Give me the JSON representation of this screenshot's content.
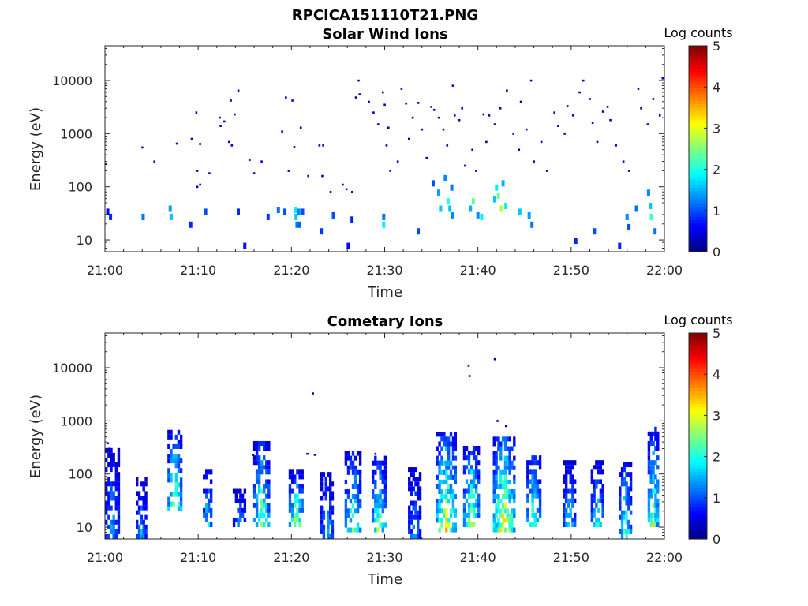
{
  "figure": {
    "filename_title": "RPCICA151110T21.PNG"
  },
  "chart_data": [
    {
      "type": "heatmap",
      "title": "Solar Wind Ions",
      "xlabel": "Time",
      "ylabel": "Energy (eV)",
      "xlim": [
        "21:00",
        "22:00"
      ],
      "ylim": [
        6,
        45000
      ],
      "yscale": "log",
      "xticks": [
        "21:00",
        "21:10",
        "21:20",
        "21:30",
        "21:40",
        "21:50",
        "22:00"
      ],
      "yticks": [
        "10",
        "100",
        "1000",
        "10000"
      ],
      "colorbar": {
        "label": "Log counts",
        "range": [
          0,
          5
        ],
        "ticks": [
          "0",
          "1",
          "2",
          "3",
          "4",
          "5"
        ],
        "colormap": "jet"
      },
      "pixels": [
        {
          "t": 0.3,
          "e": 35,
          "v": 0.5
        },
        {
          "t": 0.6,
          "e": 28,
          "v": 0.8
        },
        {
          "t": 4.1,
          "e": 28,
          "v": 1.2
        },
        {
          "t": 7.0,
          "e": 40,
          "v": 1.4
        },
        {
          "t": 7.1,
          "e": 28,
          "v": 1.6
        },
        {
          "t": 9.2,
          "e": 20,
          "v": 0.8
        },
        {
          "t": 10.8,
          "e": 35,
          "v": 1.0
        },
        {
          "t": 14.3,
          "e": 35,
          "v": 0.8
        },
        {
          "t": 15.0,
          "e": 8,
          "v": 0.7
        },
        {
          "t": 17.5,
          "e": 28,
          "v": 0.9
        },
        {
          "t": 18.6,
          "e": 38,
          "v": 1.2
        },
        {
          "t": 19.3,
          "e": 35,
          "v": 1.0
        },
        {
          "t": 20.4,
          "e": 38,
          "v": 1.8
        },
        {
          "t": 20.5,
          "e": 28,
          "v": 1.6
        },
        {
          "t": 20.6,
          "e": 20,
          "v": 1.2
        },
        {
          "t": 20.8,
          "e": 35,
          "v": 1.3
        },
        {
          "t": 20.9,
          "e": 20,
          "v": 1.1
        },
        {
          "t": 21.2,
          "e": 35,
          "v": 1.0
        },
        {
          "t": 23.2,
          "e": 15,
          "v": 0.9
        },
        {
          "t": 24.5,
          "e": 30,
          "v": 1.0
        },
        {
          "t": 26.1,
          "e": 8,
          "v": 0.6
        },
        {
          "t": 26.5,
          "e": 25,
          "v": 0.8
        },
        {
          "t": 29.9,
          "e": 28,
          "v": 1.2
        },
        {
          "t": 29.9,
          "e": 20,
          "v": 1.8
        },
        {
          "t": 33.6,
          "e": 15,
          "v": 1.0
        },
        {
          "t": 35.2,
          "e": 120,
          "v": 1.0
        },
        {
          "t": 35.8,
          "e": 80,
          "v": 1.4
        },
        {
          "t": 36.0,
          "e": 40,
          "v": 1.6
        },
        {
          "t": 36.5,
          "e": 150,
          "v": 1.3
        },
        {
          "t": 36.8,
          "e": 55,
          "v": 2.0
        },
        {
          "t": 37.0,
          "e": 40,
          "v": 1.6
        },
        {
          "t": 37.2,
          "e": 100,
          "v": 1.2
        },
        {
          "t": 37.3,
          "e": 30,
          "v": 1.3
        },
        {
          "t": 39.2,
          "e": 40,
          "v": 1.5
        },
        {
          "t": 39.5,
          "e": 55,
          "v": 2.3
        },
        {
          "t": 40.0,
          "e": 30,
          "v": 1.3
        },
        {
          "t": 40.4,
          "e": 28,
          "v": 1.8
        },
        {
          "t": 41.8,
          "e": 60,
          "v": 1.6
        },
        {
          "t": 42.0,
          "e": 100,
          "v": 1.8
        },
        {
          "t": 42.2,
          "e": 70,
          "v": 2.4
        },
        {
          "t": 42.5,
          "e": 40,
          "v": 2.8
        },
        {
          "t": 42.7,
          "e": 120,
          "v": 1.5
        },
        {
          "t": 43.0,
          "e": 45,
          "v": 1.8
        },
        {
          "t": 44.5,
          "e": 35,
          "v": 1.6
        },
        {
          "t": 45.5,
          "e": 30,
          "v": 1.4
        },
        {
          "t": 45.8,
          "e": 20,
          "v": 1.2
        },
        {
          "t": 50.5,
          "e": 10,
          "v": 0.8
        },
        {
          "t": 52.5,
          "e": 15,
          "v": 1.0
        },
        {
          "t": 55.2,
          "e": 8,
          "v": 0.8
        },
        {
          "t": 56.0,
          "e": 28,
          "v": 1.3
        },
        {
          "t": 56.2,
          "e": 18,
          "v": 1.0
        },
        {
          "t": 57.0,
          "e": 40,
          "v": 1.2
        },
        {
          "t": 58.3,
          "e": 80,
          "v": 1.3
        },
        {
          "t": 58.5,
          "e": 45,
          "v": 1.6
        },
        {
          "t": 58.6,
          "e": 28,
          "v": 2.2
        },
        {
          "t": 59.0,
          "e": 15,
          "v": 1.2
        }
      ],
      "scatter_points": [
        {
          "t": 0.1,
          "e": 270
        },
        {
          "t": 4.0,
          "e": 550
        },
        {
          "t": 5.3,
          "e": 300
        },
        {
          "t": 7.7,
          "e": 650
        },
        {
          "t": 9.3,
          "e": 800
        },
        {
          "t": 9.8,
          "e": 2500
        },
        {
          "t": 10.2,
          "e": 640
        },
        {
          "t": 9.9,
          "e": 200
        },
        {
          "t": 9.9,
          "e": 100
        },
        {
          "t": 10.2,
          "e": 110
        },
        {
          "t": 11.2,
          "e": 180
        },
        {
          "t": 12.3,
          "e": 2000
        },
        {
          "t": 12.4,
          "e": 1400
        },
        {
          "t": 12.8,
          "e": 1700
        },
        {
          "t": 13.3,
          "e": 700
        },
        {
          "t": 13.6,
          "e": 600
        },
        {
          "t": 13.5,
          "e": 4200
        },
        {
          "t": 13.9,
          "e": 2300
        },
        {
          "t": 14.3,
          "e": 6500
        },
        {
          "t": 15.5,
          "e": 320
        },
        {
          "t": 16.0,
          "e": 180
        },
        {
          "t": 16.8,
          "e": 300
        },
        {
          "t": 19.0,
          "e": 1100
        },
        {
          "t": 19.4,
          "e": 4800
        },
        {
          "t": 20.1,
          "e": 4200
        },
        {
          "t": 19.7,
          "e": 200
        },
        {
          "t": 20.3,
          "e": 560
        },
        {
          "t": 21.0,
          "e": 1300
        },
        {
          "t": 21.8,
          "e": 160
        },
        {
          "t": 23.3,
          "e": 160
        },
        {
          "t": 23.0,
          "e": 600
        },
        {
          "t": 23.4,
          "e": 600
        },
        {
          "t": 24.2,
          "e": 80
        },
        {
          "t": 25.5,
          "e": 110
        },
        {
          "t": 25.9,
          "e": 90
        },
        {
          "t": 26.5,
          "e": 80
        },
        {
          "t": 27.2,
          "e": 10000
        },
        {
          "t": 26.9,
          "e": 4800
        },
        {
          "t": 27.3,
          "e": 5500
        },
        {
          "t": 28.3,
          "e": 4000
        },
        {
          "t": 28.8,
          "e": 2500
        },
        {
          "t": 29.3,
          "e": 1500
        },
        {
          "t": 29.8,
          "e": 6000
        },
        {
          "t": 30.0,
          "e": 3500
        },
        {
          "t": 30.4,
          "e": 1300
        },
        {
          "t": 30.2,
          "e": 600
        },
        {
          "t": 30.6,
          "e": 200
        },
        {
          "t": 31.4,
          "e": 300
        },
        {
          "t": 31.8,
          "e": 7000
        },
        {
          "t": 32.3,
          "e": 3700
        },
        {
          "t": 32.6,
          "e": 800
        },
        {
          "t": 33.0,
          "e": 2000
        },
        {
          "t": 33.6,
          "e": 3800
        },
        {
          "t": 34.0,
          "e": 1200
        },
        {
          "t": 34.5,
          "e": 350
        },
        {
          "t": 35.0,
          "e": 3200
        },
        {
          "t": 35.3,
          "e": 2800
        },
        {
          "t": 35.8,
          "e": 2000
        },
        {
          "t": 36.3,
          "e": 1200
        },
        {
          "t": 36.7,
          "e": 600
        },
        {
          "t": 37.3,
          "e": 8000
        },
        {
          "t": 37.5,
          "e": 2200
        },
        {
          "t": 38.0,
          "e": 1800
        },
        {
          "t": 38.3,
          "e": 3000
        },
        {
          "t": 38.6,
          "e": 250
        },
        {
          "t": 39.4,
          "e": 500
        },
        {
          "t": 39.8,
          "e": 200
        },
        {
          "t": 40.6,
          "e": 2300
        },
        {
          "t": 40.9,
          "e": 700
        },
        {
          "t": 41.2,
          "e": 2200
        },
        {
          "t": 41.8,
          "e": 1500
        },
        {
          "t": 42.4,
          "e": 3000
        },
        {
          "t": 43.1,
          "e": 6500
        },
        {
          "t": 43.8,
          "e": 1000
        },
        {
          "t": 44.4,
          "e": 500
        },
        {
          "t": 44.6,
          "e": 4000
        },
        {
          "t": 45.2,
          "e": 1200
        },
        {
          "t": 45.7,
          "e": 10000
        },
        {
          "t": 46.0,
          "e": 300
        },
        {
          "t": 46.8,
          "e": 700
        },
        {
          "t": 47.4,
          "e": 200
        },
        {
          "t": 48.2,
          "e": 2500
        },
        {
          "t": 48.6,
          "e": 1400
        },
        {
          "t": 49.3,
          "e": 1000
        },
        {
          "t": 49.6,
          "e": 3300
        },
        {
          "t": 50.2,
          "e": 2200
        },
        {
          "t": 50.9,
          "e": 6000
        },
        {
          "t": 51.3,
          "e": 10000
        },
        {
          "t": 52.0,
          "e": 4500
        },
        {
          "t": 52.3,
          "e": 1600
        },
        {
          "t": 52.8,
          "e": 700
        },
        {
          "t": 53.4,
          "e": 2600
        },
        {
          "t": 53.9,
          "e": 3200
        },
        {
          "t": 54.2,
          "e": 1800
        },
        {
          "t": 54.8,
          "e": 600
        },
        {
          "t": 55.6,
          "e": 300
        },
        {
          "t": 56.2,
          "e": 200
        },
        {
          "t": 57.2,
          "e": 7000
        },
        {
          "t": 57.5,
          "e": 3000
        },
        {
          "t": 58.2,
          "e": 1500
        },
        {
          "t": 58.8,
          "e": 4500
        },
        {
          "t": 59.5,
          "e": 2200
        },
        {
          "t": 59.8,
          "e": 11000
        }
      ]
    },
    {
      "type": "heatmap",
      "title": "Cometary Ions",
      "xlabel": "Time",
      "ylabel": "Energy (eV)",
      "xlim": [
        "21:00",
        "22:00"
      ],
      "ylim": [
        6,
        45000
      ],
      "yscale": "log",
      "xticks": [
        "21:00",
        "21:10",
        "21:20",
        "21:30",
        "21:40",
        "21:50",
        "22:00"
      ],
      "yticks": [
        "10",
        "100",
        "1000",
        "10000"
      ],
      "colorbar": {
        "label": "Log counts",
        "range": [
          0,
          5
        ],
        "ticks": [
          "0",
          "1",
          "2",
          "3",
          "4",
          "5"
        ],
        "colormap": "jet"
      },
      "bursts": [
        {
          "t": 0.8,
          "width": 1.6,
          "top": 300,
          "bottom": 6,
          "peak": 1.6
        },
        {
          "t": 3.9,
          "width": 1.2,
          "top": 80,
          "bottom": 6,
          "peak": 1.5
        },
        {
          "t": 7.5,
          "width": 1.6,
          "top": 600,
          "bottom": 20,
          "peak": 2.8
        },
        {
          "t": 11.0,
          "width": 1.0,
          "top": 100,
          "bottom": 10,
          "peak": 2.0
        },
        {
          "t": 14.4,
          "width": 1.4,
          "top": 45,
          "bottom": 10,
          "peak": 1.5
        },
        {
          "t": 16.8,
          "width": 1.8,
          "top": 400,
          "bottom": 10,
          "peak": 2.6
        },
        {
          "t": 20.5,
          "width": 1.6,
          "top": 100,
          "bottom": 10,
          "peak": 2.8
        },
        {
          "t": 23.8,
          "width": 1.4,
          "top": 100,
          "bottom": 6,
          "peak": 1.8
        },
        {
          "t": 26.6,
          "width": 1.8,
          "top": 250,
          "bottom": 8,
          "peak": 2.4
        },
        {
          "t": 29.4,
          "width": 1.6,
          "top": 200,
          "bottom": 8,
          "peak": 2.6
        },
        {
          "t": 33.2,
          "width": 1.4,
          "top": 120,
          "bottom": 6,
          "peak": 1.5
        },
        {
          "t": 36.6,
          "width": 2.2,
          "top": 600,
          "bottom": 8,
          "peak": 3.2
        },
        {
          "t": 39.3,
          "width": 1.8,
          "top": 300,
          "bottom": 10,
          "peak": 2.8
        },
        {
          "t": 42.8,
          "width": 2.4,
          "top": 500,
          "bottom": 8,
          "peak": 3.3
        },
        {
          "t": 46.0,
          "width": 1.6,
          "top": 200,
          "bottom": 10,
          "peak": 2.6
        },
        {
          "t": 49.8,
          "width": 1.4,
          "top": 150,
          "bottom": 10,
          "peak": 1.8
        },
        {
          "t": 52.8,
          "width": 1.4,
          "top": 150,
          "bottom": 10,
          "peak": 2.0
        },
        {
          "t": 55.8,
          "width": 1.4,
          "top": 150,
          "bottom": 6,
          "peak": 2.4
        },
        {
          "t": 58.8,
          "width": 1.2,
          "top": 700,
          "bottom": 10,
          "peak": 2.8
        }
      ],
      "scatter_points": [
        {
          "t": 22.3,
          "e": 3300
        },
        {
          "t": 39.0,
          "e": 11000
        },
        {
          "t": 39.1,
          "e": 7000
        },
        {
          "t": 41.8,
          "e": 14500
        },
        {
          "t": 0.3,
          "e": 380
        },
        {
          "t": 0.5,
          "e": 300
        },
        {
          "t": 15.9,
          "e": 230
        },
        {
          "t": 21.7,
          "e": 240
        },
        {
          "t": 22.5,
          "e": 230
        },
        {
          "t": 29.0,
          "e": 240
        },
        {
          "t": 42.1,
          "e": 1000
        },
        {
          "t": 43.0,
          "e": 800
        }
      ]
    }
  ]
}
